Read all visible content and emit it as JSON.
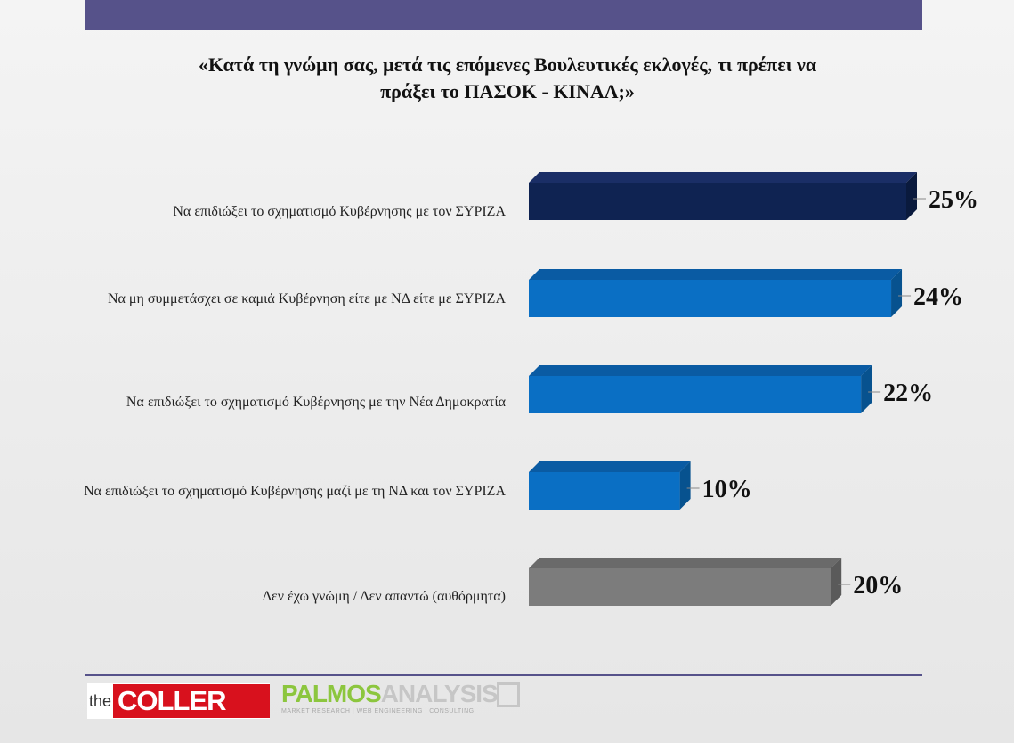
{
  "title": {
    "line1": "«Κατά τη γνώμη σας,  μετά τις επόμενες Βουλευτικές εκλογές, τι πρέπει να",
    "line2": "πράξει το ΠΑΣΟΚ - ΚΙΝΑΛ;»"
  },
  "chart_data": {
    "type": "bar",
    "orientation": "horizontal",
    "categories": [
      "Να επιδιώξει το σχηματισμό Κυβέρνησης με τον ΣΥΡΙΖΑ",
      "Να μη συμμετάσχει σε καμιά Κυβέρνηση είτε με ΝΔ είτε με ΣΥΡΙΖΑ",
      "Να επιδιώξει το σχηματισμό Κυβέρνησης με την Νέα Δημοκρατία",
      "Να επιδιώξει το σχηματισμό Κυβέρνησης μαζί με τη ΝΔ και τον ΣΥΡΙΖΑ",
      "Δεν έχω γνώμη / Δεν απαντώ (αυθόρμητα)"
    ],
    "values": [
      25,
      24,
      22,
      10,
      20
    ],
    "value_labels": [
      "25%",
      "24%",
      "22%",
      "10%",
      "20%"
    ],
    "colors": [
      "#0f2352",
      "#0a6fc4",
      "#0a6fc4",
      "#0a6fc4",
      "#7c7c7c"
    ],
    "side_colors": [
      "#0a1a3d",
      "#07528f",
      "#07528f",
      "#07528f",
      "#5a5a5a"
    ],
    "top_colors": [
      "#1a2e66",
      "#0a5ba3",
      "#0a5ba3",
      "#0a5ba3",
      "#6a6a6a"
    ],
    "xlim": [
      0,
      25
    ],
    "grid": false,
    "legend": "none"
  },
  "footer": {
    "logo1_prefix": "the",
    "logo1_main": "COLLER",
    "logo2_main_a": "PALMOS",
    "logo2_main_b": "ANALYSIS",
    "logo2_sub": "MARKET RESEARCH | WEB ENGINEERING | CONSULTING"
  }
}
